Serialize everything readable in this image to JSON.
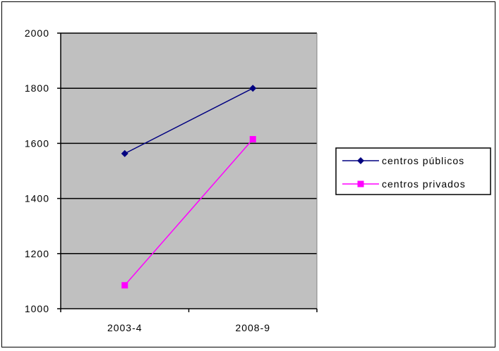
{
  "chart_data": {
    "type": "line",
    "title": "",
    "xlabel": "",
    "ylabel": "",
    "categories": [
      "2003-4",
      "2008-9"
    ],
    "ylim": [
      1000,
      2000
    ],
    "yticks": [
      1000,
      1200,
      1400,
      1600,
      1800,
      2000
    ],
    "grid": true,
    "plot_background": "#c0c0c0",
    "legend_position": "right",
    "series": [
      {
        "name": "centros públicos",
        "values": [
          1563,
          1800
        ],
        "color": "#000080",
        "marker": "diamond"
      },
      {
        "name": "centros privados",
        "values": [
          1085,
          1615
        ],
        "color": "#ff00ff",
        "marker": "square"
      }
    ]
  }
}
